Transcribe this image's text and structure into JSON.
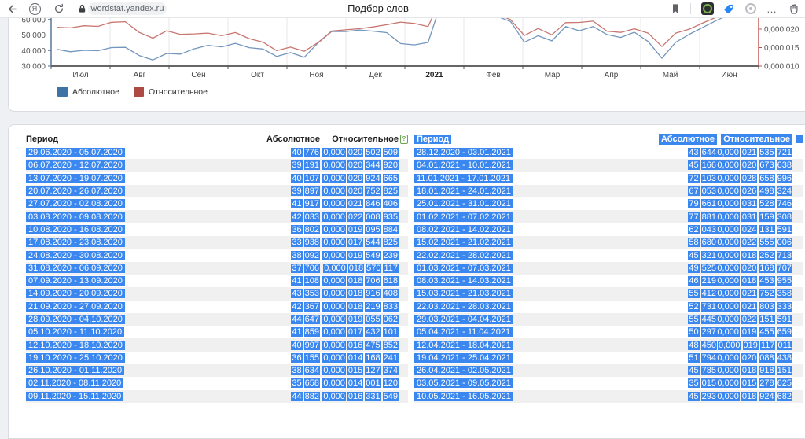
{
  "browser": {
    "url": "wordstat.yandex.ru",
    "title": "Подбор слов",
    "profile_glyph": "Я"
  },
  "colors": {
    "selection_blue": "#3b87f0",
    "row_stripe": "#f0f0f1",
    "abs_line": "#7396bd",
    "rel_line": "#c8766f",
    "abs_legend": "#3f73a5",
    "rel_legend": "#ae4a44",
    "left_axis": "#4e6f91",
    "right_axis": "#c0504d"
  },
  "chart": {
    "legend": [
      {
        "label": "Абсолютное",
        "color": "#3f73a5"
      },
      {
        "label": "Относительное",
        "color": "#ae4a44"
      }
    ],
    "left_ticks": [
      {
        "label": "60 000",
        "value": 60000
      },
      {
        "label": "50 000",
        "value": 50000
      },
      {
        "label": "40 000",
        "value": 40000
      },
      {
        "label": "30 000",
        "value": 30000
      }
    ],
    "right_ticks": [
      {
        "label": "0,000 020",
        "value": 2e-05
      },
      {
        "label": "0,000 015",
        "value": 1.5e-05
      },
      {
        "label": "0,000 010",
        "value": 1e-05
      }
    ],
    "x_labels": [
      "Июл",
      "Авг",
      "Сен",
      "Окт",
      "Ноя",
      "Дек",
      "2021",
      "Фев",
      "Мар",
      "Апр",
      "Май",
      "Июн"
    ],
    "bold_x_label": "2021"
  },
  "chart_data": {
    "type": "line",
    "title": "",
    "xlabel": "",
    "ylabel_left": "Абсолютное",
    "ylabel_right": "Относительное",
    "x_tick_labels": [
      "Июл",
      "Авг",
      "Сен",
      "Окт",
      "Ноя",
      "Дек",
      "2021",
      "Фев",
      "Мар",
      "Апр",
      "Май",
      "Июн"
    ],
    "ylim_left": [
      30000,
      62000
    ],
    "ylim_right": [
      1e-05,
      2.18e-05
    ],
    "grid": "vertical",
    "legend_position": "bottom-left",
    "estimated": "point indices 20-25 and 46-50 read from plotted lines (their table rows are scrolled out of view)",
    "series": [
      {
        "name": "Абсолютное",
        "axis": "left",
        "color": "#7396bd",
        "values": [
          40776,
          39191,
          40107,
          39897,
          41917,
          42033,
          36802,
          33938,
          38092,
          37706,
          41108,
          43353,
          42367,
          44647,
          41859,
          40997,
          36155,
          38634,
          35658,
          44882,
          52300,
          52250,
          53250,
          52500,
          51500,
          44500,
          43644,
          45166,
          72103,
          67053,
          79661,
          77881,
          62043,
          58680,
          45321,
          49525,
          46219,
          55412,
          52731,
          55445,
          50297,
          48450,
          51794,
          45785,
          35015,
          45293,
          50500,
          55000,
          59500,
          63500,
          66500
        ]
      },
      {
        "name": "Относительное",
        "axis": "right",
        "color": "#c8766f",
        "values": [
          2.0502509e-05,
          2.034492e-05,
          2.0924665e-05,
          2.0752825e-05,
          2.1846406e-05,
          2.2008935e-05,
          1.9095884e-05,
          1.7544825e-05,
          1.9549239e-05,
          1.8570117e-05,
          1.8706618e-05,
          1.8916408e-05,
          1.8219833e-05,
          1.9055062e-05,
          1.7432101e-05,
          1.6475852e-05,
          1.4168241e-05,
          1.5127374e-05,
          1.400112e-05,
          1.6331549e-05,
          1.95e-05,
          1.98e-05,
          2.01e-05,
          2.06e-05,
          2.12e-05,
          2.19e-05,
          2.1535721e-05,
          2.0673638e-05,
          2.8658996e-05,
          2.6498324e-05,
          3.1528746e-05,
          3.1159308e-05,
          2.4131591e-05,
          2.2555006e-05,
          1.8252713e-05,
          2.0168707e-05,
          1.8453955e-05,
          2.1752358e-05,
          2.1803333e-05,
          2.2151591e-05,
          1.9455659e-05,
          1.9117011e-05,
          2.0088438e-05,
          1.8918151e-05,
          1.5278625e-05,
          1.8924682e-05,
          2e-05,
          2.17e-05,
          2.33e-05,
          2.5e-05,
          2.6e-05
        ]
      }
    ]
  },
  "table_left": {
    "headers": {
      "period": "Период",
      "abs": "Абсолютное",
      "rel": "Относительное",
      "help_icon": "?"
    },
    "rows": [
      {
        "p": "29.06.2020 - 05.07.2020",
        "a": "40 776",
        "r": "0,000 020 502 509"
      },
      {
        "p": "06.07.2020 - 12.07.2020",
        "a": "39 191",
        "r": "0,000 020 344 920"
      },
      {
        "p": "13.07.2020 - 19.07.2020",
        "a": "40 107",
        "r": "0,000 020 924 665"
      },
      {
        "p": "20.07.2020 - 26.07.2020",
        "a": "39 897",
        "r": "0,000 020 752 825"
      },
      {
        "p": "27.07.2020 - 02.08.2020",
        "a": "41 917",
        "r": "0,000 021 846 406"
      },
      {
        "p": "03.08.2020 - 09.08.2020",
        "a": "42 033",
        "r": "0,000 022 008 935"
      },
      {
        "p": "10.08.2020 - 16.08.2020",
        "a": "36 802",
        "r": "0,000 019 095 884"
      },
      {
        "p": "17.08.2020 - 23.08.2020",
        "a": "33 938",
        "r": "0,000 017 544 825"
      },
      {
        "p": "24.08.2020 - 30.08.2020",
        "a": "38 092",
        "r": "0,000 019 549 239"
      },
      {
        "p": "31.08.2020 - 06.09.2020",
        "a": "37 706",
        "r": "0,000 018 570 117"
      },
      {
        "p": "07.09.2020 - 13.09.2020",
        "a": "41 108",
        "r": "0,000 018 706 618"
      },
      {
        "p": "14.09.2020 - 20.09.2020",
        "a": "43 353",
        "r": "0,000 018 916 408"
      },
      {
        "p": "21.09.2020 - 27.09.2020",
        "a": "42 367",
        "r": "0,000 018 219 833"
      },
      {
        "p": "28.09.2020 - 04.10.2020",
        "a": "44 647",
        "r": "0,000 019 055 062"
      },
      {
        "p": "05.10.2020 - 11.10.2020",
        "a": "41 859",
        "r": "0,000 017 432 101"
      },
      {
        "p": "12.10.2020 - 18.10.2020",
        "a": "40 997",
        "r": "0,000 016 475 852"
      },
      {
        "p": "19.10.2020 - 25.10.2020",
        "a": "36 155",
        "r": "0,000 014 168 241"
      },
      {
        "p": "26.10.2020 - 01.11.2020",
        "a": "38 634",
        "r": "0,000 015 127 374"
      },
      {
        "p": "02.11.2020 - 08.11.2020",
        "a": "35 658",
        "r": "0,000 014 001 120"
      },
      {
        "p": "09.11.2020 - 15.11.2020",
        "a": "44 882",
        "r": "0,000 016 331 549"
      }
    ]
  },
  "table_right": {
    "headers": {
      "period": "Период",
      "abs": "Абсолютное",
      "rel": "Относительное"
    },
    "rows": [
      {
        "p": "28.12.2020 - 03.01.2021",
        "a": "43 644",
        "r": "0,000 021 535 721"
      },
      {
        "p": "04.01.2021 - 10.01.2021",
        "a": "45 166",
        "r": "0,000 020 673 638"
      },
      {
        "p": "11.01.2021 - 17.01.2021",
        "a": "72 103",
        "r": "0,000 028 658 996"
      },
      {
        "p": "18.01.2021 - 24.01.2021",
        "a": "67 053",
        "r": "0,000 026 498 324"
      },
      {
        "p": "25.01.2021 - 31.01.2021",
        "a": "79 661",
        "r": "0,000 031 528 746"
      },
      {
        "p": "01.02.2021 - 07.02.2021",
        "a": "77 881",
        "r": "0,000 031 159 308"
      },
      {
        "p": "08.02.2021 - 14.02.2021",
        "a": "62 043",
        "r": "0,000 024 131 591"
      },
      {
        "p": "15.02.2021 - 21.02.2021",
        "a": "58 680",
        "r": "0,000 022 555 006"
      },
      {
        "p": "22.02.2021 - 28.02.2021",
        "a": "45 321",
        "r": "0,000 018 252 713"
      },
      {
        "p": "01.03.2021 - 07.03.2021",
        "a": "49 525",
        "r": "0,000 020 168 707"
      },
      {
        "p": "08.03.2021 - 14.03.2021",
        "a": "46 219",
        "r": "0,000 018 453 955"
      },
      {
        "p": "15.03.2021 - 21.03.2021",
        "a": "55 412",
        "r": "0,000 021 752 358"
      },
      {
        "p": "22.03.2021 - 28.03.2021",
        "a": "52 731",
        "r": "0,000 021 803 333"
      },
      {
        "p": "29.03.2021 - 04.04.2021",
        "a": "55 445",
        "r": "0,000 022 151 591"
      },
      {
        "p": "05.04.2021 - 11.04.2021",
        "a": "50 297",
        "r": "0,000 019 455 659"
      },
      {
        "p": "12.04.2021 - 18.04.2021",
        "a": "48 450",
        "r": "0,000 019 117 011"
      },
      {
        "p": "19.04.2021 - 25.04.2021",
        "a": "51 794",
        "r": "0,000 020 088 438"
      },
      {
        "p": "26.04.2021 - 02.05.2021",
        "a": "45 785",
        "r": "0,000 018 918 151"
      },
      {
        "p": "03.05.2021 - 09.05.2021",
        "a": "35 015",
        "r": "0,000 015 278 625"
      },
      {
        "p": "10.05.2021 - 16.05.2021",
        "a": "45 293",
        "r": "0,000 018 924 682"
      }
    ]
  }
}
